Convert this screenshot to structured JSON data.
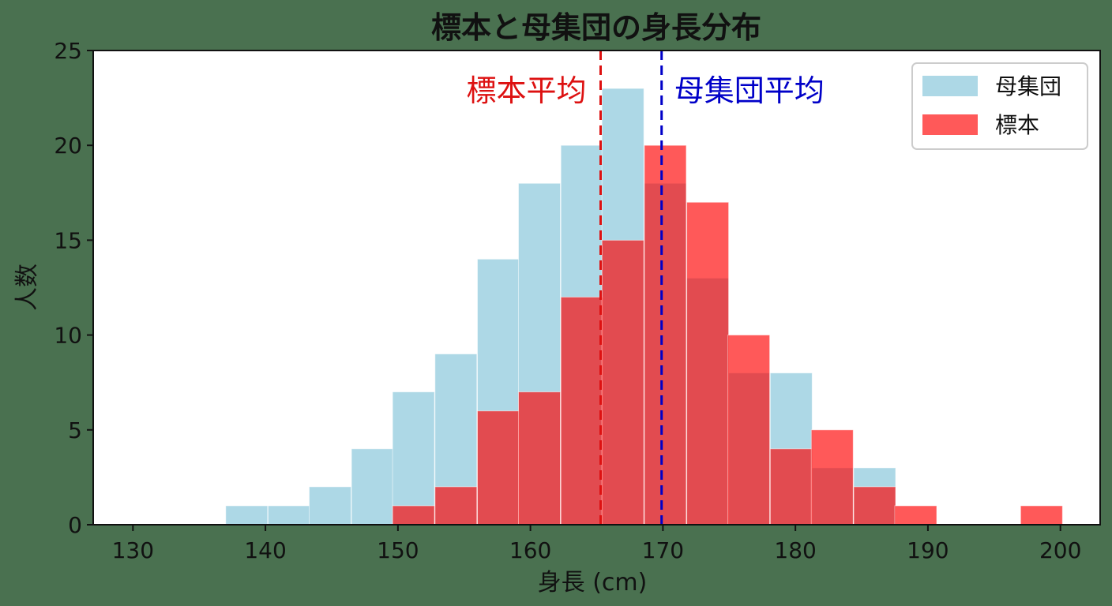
{
  "chart_data": {
    "type": "bar",
    "title": "標本と母集団の身長分布",
    "xlabel": "身長 (cm)",
    "ylabel": "人数",
    "xlim": [
      127,
      203
    ],
    "ylim": [
      0,
      25
    ],
    "xticks": [
      130,
      140,
      150,
      160,
      170,
      180,
      190,
      200
    ],
    "yticks": [
      0,
      5,
      10,
      15,
      20,
      25
    ],
    "grid": false,
    "legend_position": "top-right",
    "series": [
      {
        "name": "母集団",
        "color": "#add8e6",
        "bin_width": 3.16,
        "bin_start": [
          137.0,
          140.2,
          143.3,
          146.5,
          149.6,
          152.8,
          156.0,
          159.1,
          162.3,
          165.4,
          168.6,
          171.8,
          174.9,
          178.1,
          181.2,
          184.4
        ],
        "values": [
          1,
          1,
          2,
          4,
          7,
          9,
          14,
          18,
          20,
          23,
          18,
          13,
          8,
          8,
          3,
          3
        ]
      },
      {
        "name": "標本",
        "color": "#ff0000",
        "opacity": 0.65,
        "bin_width": 3.16,
        "bin_start": [
          149.6,
          152.8,
          156.0,
          159.1,
          162.3,
          165.4,
          168.6,
          171.8,
          174.9,
          178.1,
          181.2,
          184.4,
          187.5,
          190.7,
          193.9,
          197.0
        ],
        "values": [
          1,
          2,
          6,
          7,
          12,
          15,
          20,
          17,
          10,
          4,
          5,
          2,
          1,
          0,
          0,
          1
        ]
      }
    ],
    "annotations": [
      {
        "text": "標本平均",
        "x": 165.3,
        "color": "#dd1111",
        "align": "right"
      },
      {
        "text": "母集団平均",
        "x": 169.9,
        "color": "#0000c8",
        "align": "left"
      }
    ]
  }
}
